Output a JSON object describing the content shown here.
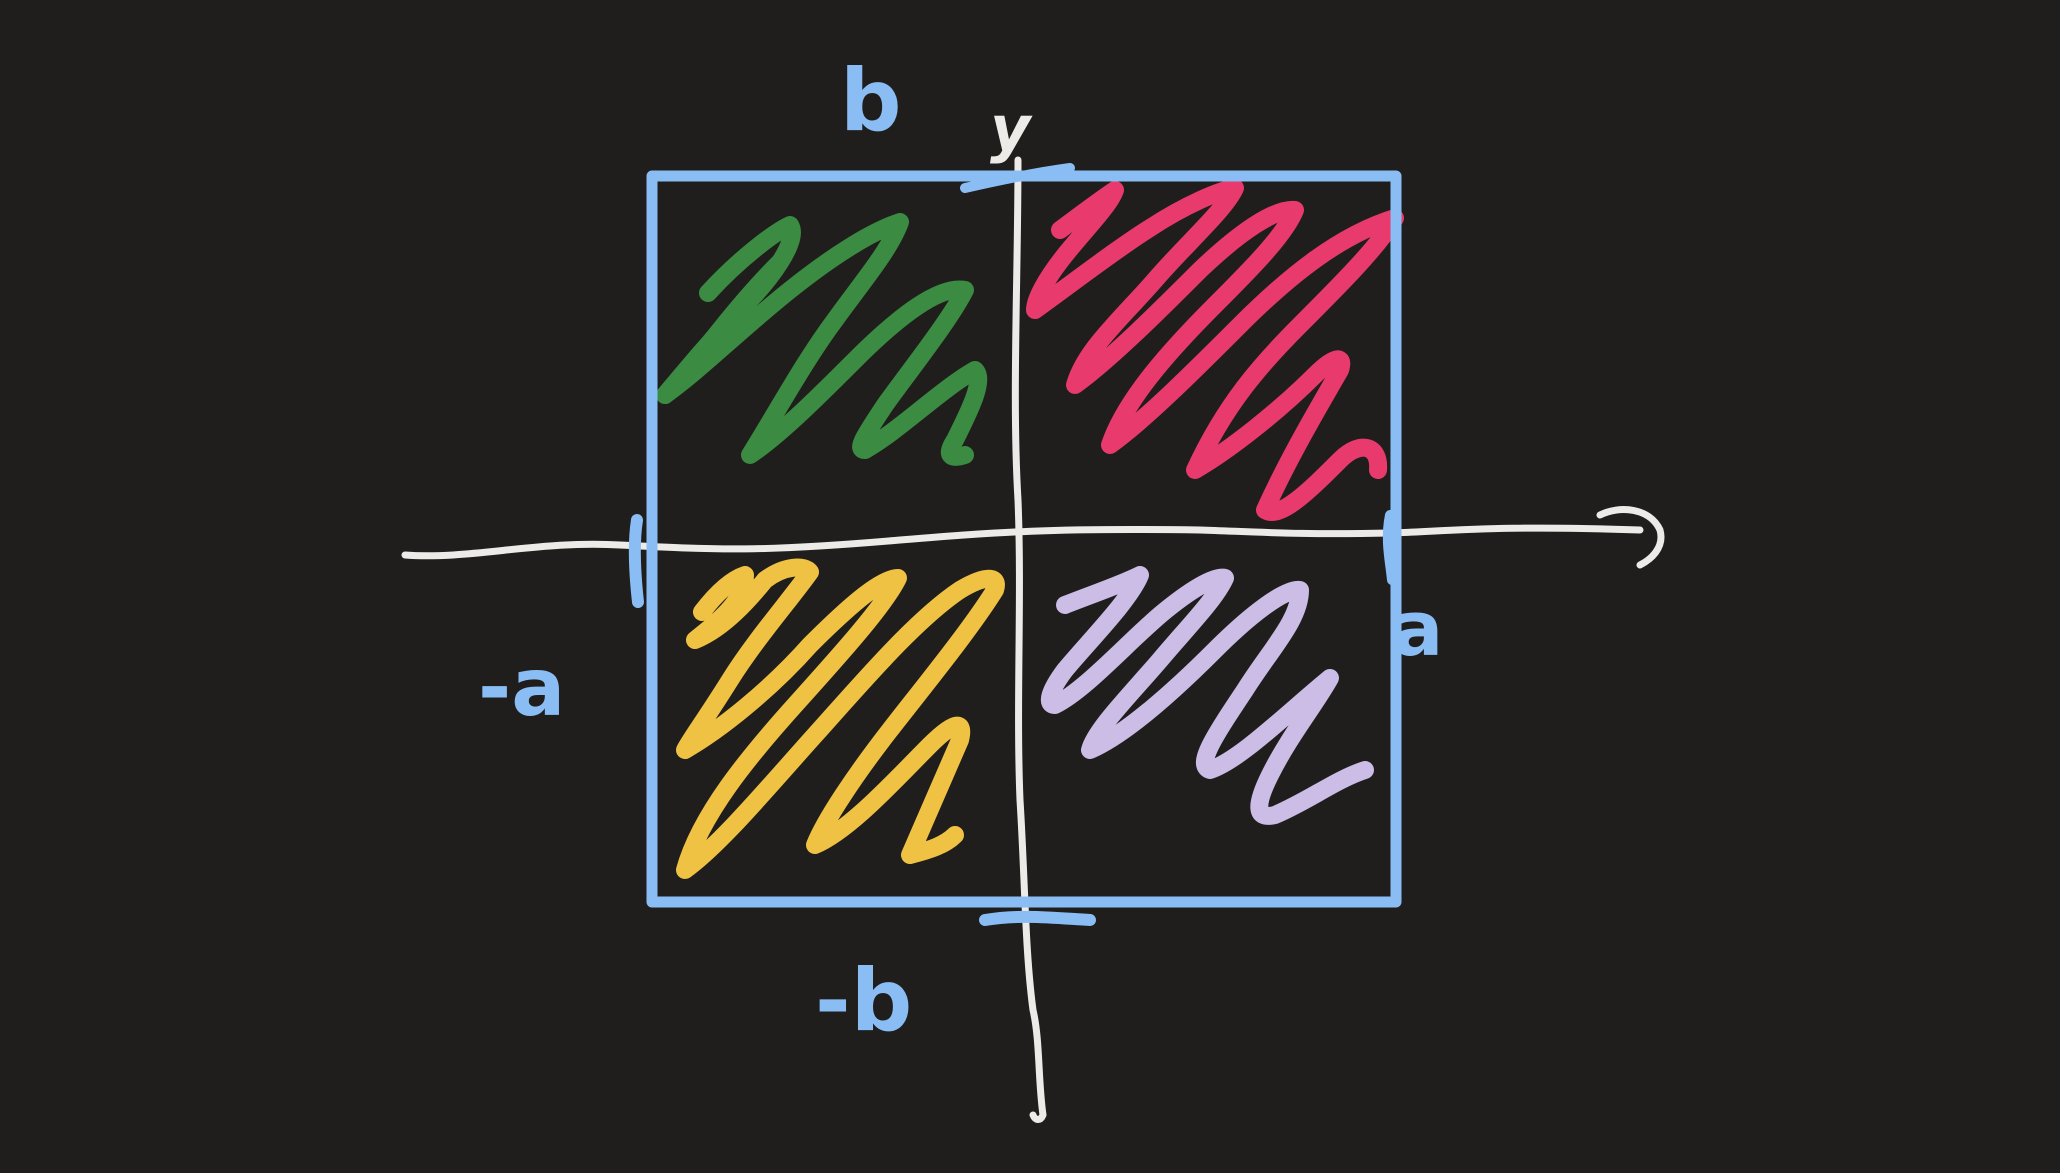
{
  "colors": {
    "background": "#1f1e1d",
    "axis": "#ecebe8",
    "box": "#8bbdf5",
    "green": "#3b8b42",
    "pink": "#e83a6c",
    "yellow": "#f0c244",
    "lavender": "#cbbde6"
  },
  "labels": {
    "y_axis": "y",
    "top": "b",
    "bottom": "-b",
    "left": "-a",
    "right": "a"
  },
  "regions": [
    {
      "quadrant": "top-left",
      "color": "green"
    },
    {
      "quadrant": "top-right",
      "color": "pink"
    },
    {
      "quadrant": "bottom-left",
      "color": "yellow"
    },
    {
      "quadrant": "bottom-right",
      "color": "lavender"
    }
  ]
}
